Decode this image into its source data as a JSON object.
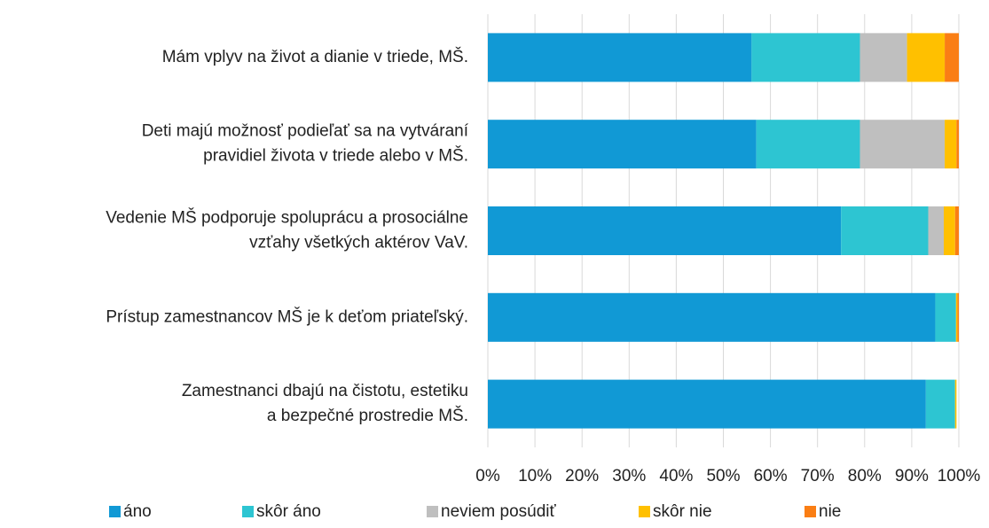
{
  "chart_data": {
    "type": "stacked-bar-horizontal",
    "categories": [
      [
        "Mám vplyv na život a dianie v triede, MŠ."
      ],
      [
        "Deti majú možnosť podieľať sa na vytváraní",
        "pravidiel života v triede alebo v MŠ."
      ],
      [
        "Vedenie MŠ podporuje spoluprácu a prosociálne",
        "vzťahy všetkých aktérov VaV."
      ],
      [
        "Prístup zamestnancov MŠ je k deťom priateľský."
      ],
      [
        "Zamestnanci dbajú na čistotu, estetiku",
        "a bezpečné prostredie MŠ."
      ]
    ],
    "series": [
      {
        "name": "áno",
        "color": "#1199d5",
        "values": [
          56,
          57,
          75,
          95,
          93
        ]
      },
      {
        "name": "skôr áno",
        "color": "#2dc5d2",
        "values": [
          23,
          22,
          18.5,
          4.4,
          6.2
        ]
      },
      {
        "name": "neviem posúdiť",
        "color": "#bfbfbf",
        "values": [
          10,
          18,
          3.3,
          0,
          0
        ]
      },
      {
        "name": "skôr nie",
        "color": "#ffc000",
        "values": [
          8,
          2.5,
          2.4,
          0.3,
          0.3
        ]
      },
      {
        "name": "nie",
        "color": "#fa7e14",
        "values": [
          3,
          0.5,
          0.8,
          0.3,
          0
        ]
      }
    ],
    "xlim": [
      0,
      100
    ],
    "xticks": [
      {
        "value": 0,
        "label": "0%"
      },
      {
        "value": 10,
        "label": "10%"
      },
      {
        "value": 20,
        "label": "20%"
      },
      {
        "value": 30,
        "label": "30%"
      },
      {
        "value": 40,
        "label": "40%"
      },
      {
        "value": 50,
        "label": "50%"
      },
      {
        "value": 60,
        "label": "60%"
      },
      {
        "value": 70,
        "label": "70%"
      },
      {
        "value": 80,
        "label": "80%"
      },
      {
        "value": 90,
        "label": "90%"
      },
      {
        "value": 100,
        "label": "100%"
      }
    ],
    "grid": true
  }
}
